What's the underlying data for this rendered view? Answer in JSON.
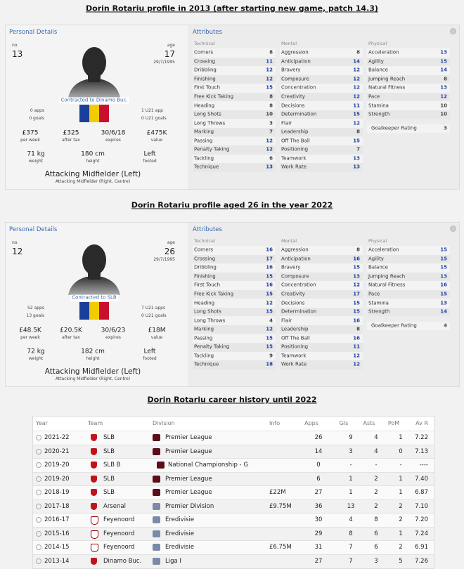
{
  "profiles": [
    {
      "title": "Dorin Rotariu profile in 2013 (after starting new game, patch 14.3)",
      "personal": {
        "section": "Personal Details",
        "no_label": "no.",
        "no": "13",
        "age_label": "age",
        "age": "17",
        "dob": "29/7/1995",
        "contract": "Contracted to Dinamo Buc.",
        "apps": "0 apps",
        "goals": "0 goals",
        "u21_apps": "1 U21 app",
        "u21_goals": "0 U21 goals",
        "stats": [
          [
            "£375",
            "per week"
          ],
          [
            "£325",
            "after tax"
          ],
          [
            "30/6/18",
            "expires"
          ],
          [
            "£475K",
            "value"
          ]
        ],
        "body": [
          [
            "71 kg",
            "weight"
          ],
          [
            "180 cm",
            "height"
          ],
          [
            "Left",
            "footed"
          ]
        ],
        "position": "Attacking Midfielder (Left)",
        "positions": "Attacking Midfielder (Right, Centre)"
      },
      "attributes": {
        "title": "Attributes",
        "groups": [
          {
            "name": "Technical",
            "rows": [
              [
                "Corners",
                8
              ],
              [
                "Crossing",
                11
              ],
              [
                "Dribbling",
                12
              ],
              [
                "Finishing",
                12
              ],
              [
                "First Touch",
                15
              ],
              [
                "Free Kick Taking",
                8
              ],
              [
                "Heading",
                8
              ],
              [
                "Long Shots",
                10
              ],
              [
                "Long Throws",
                3
              ],
              [
                "Marking",
                7
              ],
              [
                "Passing",
                12
              ],
              [
                "Penalty Taking",
                12
              ],
              [
                "Tackling",
                6
              ],
              [
                "Technique",
                13
              ]
            ]
          },
          {
            "name": "Mental",
            "rows": [
              [
                "Aggression",
                8
              ],
              [
                "Anticipation",
                14
              ],
              [
                "Bravery",
                12
              ],
              [
                "Composure",
                12
              ],
              [
                "Concentration",
                12
              ],
              [
                "Creativity",
                12
              ],
              [
                "Decisions",
                11
              ],
              [
                "Determination",
                15
              ],
              [
                "Flair",
                12
              ],
              [
                "Leadership",
                8
              ],
              [
                "Off The Ball",
                15
              ],
              [
                "Positioning",
                7
              ],
              [
                "Teamwork",
                13
              ],
              [
                "Work Rate",
                13
              ]
            ]
          },
          {
            "name": "Physical",
            "rows": [
              [
                "Acceleration",
                13
              ],
              [
                "Agility",
                15
              ],
              [
                "Balance",
                14
              ],
              [
                "Jumping Reach",
                8
              ],
              [
                "Natural Fitness",
                13
              ],
              [
                "Pace",
                12
              ],
              [
                "Stamina",
                10
              ],
              [
                "Strength",
                10
              ]
            ]
          }
        ],
        "goalkeeper": [
          "Goalkeeper Rating",
          3
        ]
      }
    },
    {
      "title": "Dorin Rotariu profile aged 26 in the year 2022",
      "personal": {
        "section": "Personal Details",
        "no_label": "no.",
        "no": "12",
        "age_label": "age",
        "age": "26",
        "dob": "29/7/1995",
        "contract": "Contracted to SLB",
        "apps": "52 apps",
        "goals": "13 goals",
        "u21_apps": "7 U21 apps",
        "u21_goals": "0 U21 goals",
        "stats": [
          [
            "£48.5K",
            "per week"
          ],
          [
            "£20.5K",
            "after tax"
          ],
          [
            "30/6/23",
            "expires"
          ],
          [
            "£18M",
            "value"
          ]
        ],
        "body": [
          [
            "72 kg",
            "weight"
          ],
          [
            "182 cm",
            "height"
          ],
          [
            "Left",
            "footed"
          ]
        ],
        "position": "Attacking Midfielder (Left)",
        "positions": "Attacking Midfielder (Right, Centre)"
      },
      "attributes": {
        "title": "Attributes",
        "groups": [
          {
            "name": "Technical",
            "rows": [
              [
                "Corners",
                16
              ],
              [
                "Crossing",
                17
              ],
              [
                "Dribbling",
                16
              ],
              [
                "Finishing",
                15
              ],
              [
                "First Touch",
                16
              ],
              [
                "Free Kick Taking",
                15
              ],
              [
                "Heading",
                12
              ],
              [
                "Long Shots",
                15
              ],
              [
                "Long Throws",
                4
              ],
              [
                "Marking",
                12
              ],
              [
                "Passing",
                15
              ],
              [
                "Penalty Taking",
                15
              ],
              [
                "Tackling",
                9
              ],
              [
                "Technique",
                18
              ]
            ]
          },
          {
            "name": "Mental",
            "rows": [
              [
                "Aggression",
                8
              ],
              [
                "Anticipation",
                16
              ],
              [
                "Bravery",
                15
              ],
              [
                "Composure",
                13
              ],
              [
                "Concentration",
                12
              ],
              [
                "Creativity",
                17
              ],
              [
                "Decisions",
                15
              ],
              [
                "Determination",
                15
              ],
              [
                "Flair",
                16
              ],
              [
                "Leadership",
                8
              ],
              [
                "Off The Ball",
                16
              ],
              [
                "Positioning",
                11
              ],
              [
                "Teamwork",
                12
              ],
              [
                "Work Rate",
                12
              ]
            ]
          },
          {
            "name": "Physical",
            "rows": [
              [
                "Acceleration",
                15
              ],
              [
                "Agility",
                15
              ],
              [
                "Balance",
                15
              ],
              [
                "Jumping Reach",
                13
              ],
              [
                "Natural Fitness",
                16
              ],
              [
                "Pace",
                15
              ],
              [
                "Stamina",
                13
              ],
              [
                "Strength",
                14
              ]
            ]
          }
        ],
        "goalkeeper": [
          "Goalkeeper Rating",
          4
        ]
      }
    }
  ],
  "career": {
    "title": "Dorin Rotariu career history until 2022",
    "headers": [
      "Year",
      "Team",
      "Division",
      "Info",
      "Apps",
      "Gls",
      "Asts",
      "PoM",
      "Av R"
    ],
    "rows": [
      [
        "2021-22",
        "SLB",
        "Premier League",
        null,
        "26",
        "9",
        "4",
        "1",
        "7.22"
      ],
      [
        "2020-21",
        "SLB",
        "Premier League",
        null,
        "14",
        "3",
        "4",
        "0",
        "7.13"
      ],
      [
        "2019-20",
        "SLB B",
        "National Championship - G",
        null,
        "0",
        "-",
        "-",
        "-",
        "----"
      ],
      [
        "2019-20",
        "SLB",
        "Premier League",
        null,
        "6",
        "1",
        "2",
        "1",
        "7.40"
      ],
      [
        "2018-19",
        "SLB",
        "Premier League",
        "£22M",
        "27",
        "1",
        "2",
        "1",
        "6.87"
      ],
      [
        "2017-18",
        "Arsenal",
        "Premier Division",
        "£9.75M",
        "36",
        "13",
        "2",
        "2",
        "7.10"
      ],
      [
        "2016-17",
        "Feyenoord",
        "Eredivisie",
        null,
        "30",
        "4",
        "8",
        "2",
        "7.20"
      ],
      [
        "2015-16",
        "Feyenoord",
        "Eredivisie",
        null,
        "29",
        "8",
        "6",
        "1",
        "7.24"
      ],
      [
        "2014-15",
        "Feyenoord",
        "Eredivisie",
        "£6.75M",
        "31",
        "7",
        "6",
        "2",
        "6.91"
      ],
      [
        "2013-14",
        "Dinamo Buc.",
        "Liga I",
        null,
        "27",
        "7",
        "3",
        "5",
        "7.26"
      ]
    ]
  }
}
